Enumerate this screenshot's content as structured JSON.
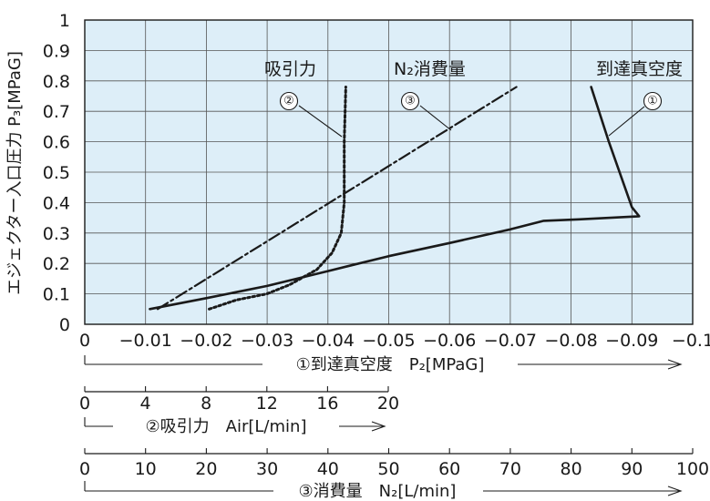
{
  "chart_data": {
    "type": "line",
    "y_axis": {
      "label": "エジェクター入口圧力 P₃[MPaG]",
      "range": [
        0,
        1
      ],
      "ticks": [
        "0",
        "0.1",
        "0.2",
        "0.3",
        "0.4",
        "0.5",
        "0.6",
        "0.7",
        "0.8",
        "0.9",
        "1"
      ]
    },
    "x_axis_vacuum": {
      "label": "①到達真空度　P₂[MPaG]",
      "range": [
        0,
        -0.1
      ],
      "ticks": [
        "0",
        "−0.01",
        "−0.02",
        "−0.03",
        "−0.04",
        "−0.05",
        "−0.06",
        "−0.07",
        "−0.08",
        "−0.09",
        "−0.1"
      ]
    },
    "x_axis_suction": {
      "label": "②吸引力　Air[L/min]",
      "range": [
        0,
        20
      ],
      "ticks": [
        "0",
        "4",
        "8",
        "12",
        "16",
        "20"
      ]
    },
    "x_axis_consumption": {
      "label": "③消費量　N₂[L/min]",
      "range": [
        0,
        100
      ],
      "ticks": [
        "0",
        "10",
        "20",
        "30",
        "40",
        "50",
        "60",
        "70",
        "80",
        "90",
        "100"
      ]
    },
    "grid": true,
    "plot_background": "#ddeef8",
    "series": [
      {
        "name": "到達真空度",
        "marker": "①",
        "style": "solid",
        "x_unit": "MPaG",
        "points": [
          [
            -0.0107,
            0.05
          ],
          [
            -0.02,
            0.086
          ],
          [
            -0.03,
            0.126
          ],
          [
            -0.04,
            0.175
          ],
          [
            -0.05,
            0.224
          ],
          [
            -0.06,
            0.267
          ],
          [
            -0.07,
            0.312
          ],
          [
            -0.0755,
            0.34
          ],
          [
            -0.0813,
            0.345
          ],
          [
            -0.0912,
            0.355
          ],
          [
            -0.09,
            0.385
          ],
          [
            -0.0862,
            0.6
          ],
          [
            -0.0833,
            0.78
          ]
        ]
      },
      {
        "name": "吸引力",
        "marker": "②",
        "style": "dotted",
        "x_unit": "L/min",
        "points": [
          [
            8.2,
            0.05
          ],
          [
            10,
            0.08
          ],
          [
            12,
            0.1
          ],
          [
            13.5,
            0.13
          ],
          [
            15.3,
            0.18
          ],
          [
            16.3,
            0.235
          ],
          [
            16.9,
            0.3
          ],
          [
            17.1,
            0.4
          ],
          [
            17.1,
            0.6
          ],
          [
            17.2,
            0.78
          ]
        ]
      },
      {
        "name": "N₂消費量",
        "marker": "③",
        "style": "dash-dot",
        "x_unit": "L/min",
        "points": [
          [
            12,
            0.05
          ],
          [
            71,
            0.78
          ]
        ]
      }
    ],
    "annotations": [
      "吸引力",
      "N₂消費量",
      "到達真空度",
      "①",
      "②",
      "③"
    ]
  }
}
